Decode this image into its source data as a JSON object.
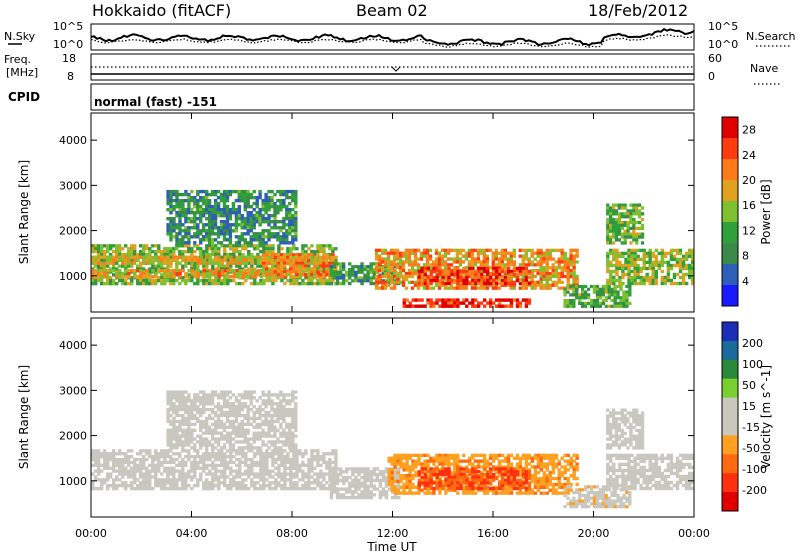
{
  "header": {
    "station": "Hokkaido (fitACF)",
    "beam": "Beam 02",
    "date": "18/Feb/2012"
  },
  "noise_panel": {
    "left_label": "N.Sky",
    "right_label": "N.Search",
    "left_ticks": [
      "10^5",
      "10^0"
    ],
    "right_ticks": [
      "10^5",
      "10^0"
    ]
  },
  "freq_panel": {
    "left_label_line1": "Freq.",
    "left_label_line2": "[MHz]",
    "right_label": "Nave",
    "left_ticks": [
      "18",
      "8"
    ],
    "right_ticks": [
      "60",
      "0"
    ]
  },
  "cpid": {
    "label": "CPID",
    "mode": "normal (fast) -151"
  },
  "colors": {
    "power_scale": [
      "#1a1aff",
      "#2e5fb8",
      "#3a8a4a",
      "#2fa03a",
      "#7fc030",
      "#e0a020",
      "#ff7a1a",
      "#ff3b10",
      "#e00000"
    ],
    "velocity_scale": [
      "#1a2eb8",
      "#1a6a9a",
      "#2a8a3a",
      "#7ad030",
      "#c8c8c0",
      "#c8c8c0",
      "#ffa020",
      "#ff6a10",
      "#ff3010",
      "#e00000"
    ]
  },
  "chart_data": [
    {
      "type": "heatmap",
      "title": "",
      "quantity": "Power",
      "xlabel": "Time UT",
      "ylabel": "Slant Range [km]",
      "x_ticks": [
        "00:00",
        "04:00",
        "08:00",
        "12:00",
        "16:00",
        "20:00",
        "00:00"
      ],
      "y_ticks": [
        1000,
        2000,
        3000,
        4000
      ],
      "xlim": [
        0,
        24
      ],
      "ylim": [
        200,
        4600
      ],
      "colorbar_label": "Power [dB]",
      "colorbar_ticks": [
        4,
        8,
        12,
        16,
        20,
        24,
        28
      ],
      "colorbar_range": [
        0,
        30
      ],
      "regions": [
        {
          "t0": 0.0,
          "t1": 9.8,
          "r0": 800,
          "r1": 1700,
          "level": 14
        },
        {
          "t0": 0.0,
          "t1": 9.6,
          "r0": 950,
          "r1": 1150,
          "level": 19
        },
        {
          "t0": 0.0,
          "t1": 9.6,
          "r0": 1250,
          "r1": 1450,
          "level": 18
        },
        {
          "t0": 6.8,
          "t1": 9.8,
          "r0": 1000,
          "r1": 1500,
          "level": 21
        },
        {
          "t0": 3.0,
          "t1": 8.2,
          "r0": 1700,
          "r1": 2900,
          "level": 9
        },
        {
          "t0": 9.5,
          "t1": 12.3,
          "r0": 800,
          "r1": 1300,
          "level": 10
        },
        {
          "t0": 11.3,
          "t1": 19.4,
          "r0": 700,
          "r1": 1600,
          "level": 20
        },
        {
          "t0": 13.0,
          "t1": 17.5,
          "r0": 800,
          "r1": 1200,
          "level": 26
        },
        {
          "t0": 12.4,
          "t1": 17.5,
          "r0": 300,
          "r1": 500,
          "level": 27
        },
        {
          "t0": 18.8,
          "t1": 21.5,
          "r0": 300,
          "r1": 800,
          "level": 12
        },
        {
          "t0": 20.5,
          "t1": 24.0,
          "r0": 800,
          "r1": 1600,
          "level": 15
        },
        {
          "t0": 20.5,
          "t1": 22.0,
          "r0": 1700,
          "r1": 2600,
          "level": 13
        }
      ]
    },
    {
      "type": "heatmap",
      "title": "",
      "quantity": "Velocity",
      "xlabel": "Time UT",
      "ylabel": "Slant Range [km]",
      "x_ticks": [
        "00:00",
        "04:00",
        "08:00",
        "12:00",
        "16:00",
        "20:00",
        "00:00"
      ],
      "y_ticks": [
        1000,
        2000,
        3000,
        4000
      ],
      "xlim": [
        0,
        24
      ],
      "ylim": [
        200,
        4600
      ],
      "colorbar_label": "Velocity [m s^-1]",
      "colorbar_ticks": [
        "200",
        "100",
        "50",
        "15",
        "-15",
        "-50",
        "-100",
        "-200"
      ],
      "colorbar_range": [
        -250,
        250
      ],
      "regions": [
        {
          "t0": 0.0,
          "t1": 9.8,
          "r0": 800,
          "r1": 1700,
          "level": 0
        },
        {
          "t0": 3.0,
          "t1": 8.2,
          "r0": 1700,
          "r1": 3000,
          "level": -20
        },
        {
          "t0": 9.5,
          "t1": 12.3,
          "r0": 600,
          "r1": 1300,
          "level": 20
        },
        {
          "t0": 11.8,
          "t1": 19.4,
          "r0": 700,
          "r1": 1600,
          "level": -80
        },
        {
          "t0": 13.0,
          "t1": 17.5,
          "r0": 800,
          "r1": 1300,
          "level": -150
        },
        {
          "t0": 18.8,
          "t1": 21.5,
          "r0": 400,
          "r1": 900,
          "level": -30
        },
        {
          "t0": 20.5,
          "t1": 24.0,
          "r0": 800,
          "r1": 1600,
          "level": 0
        },
        {
          "t0": 20.5,
          "t1": 22.0,
          "r0": 1700,
          "r1": 2600,
          "level": 5
        }
      ]
    }
  ]
}
